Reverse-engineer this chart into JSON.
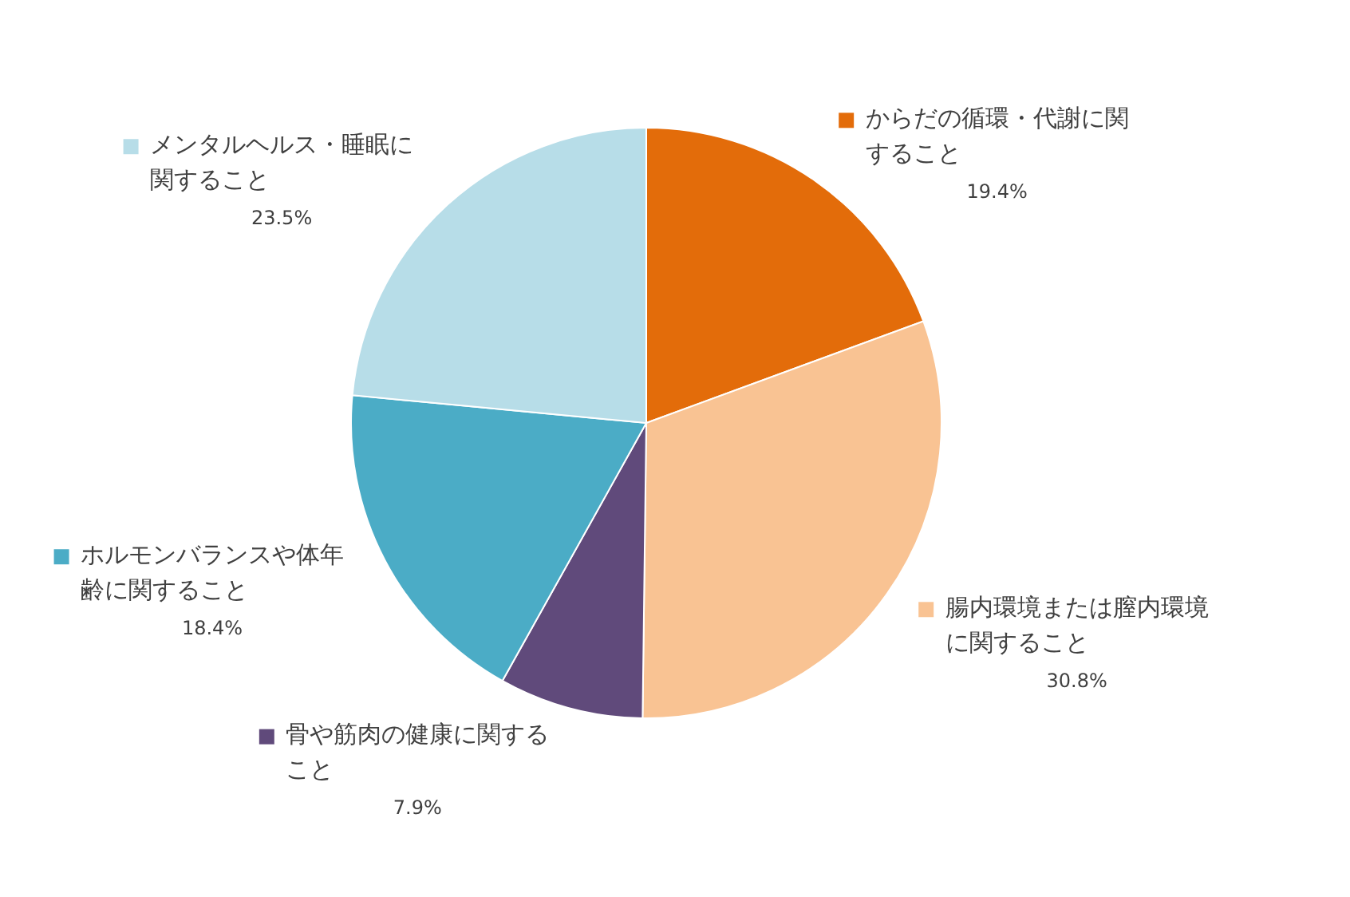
{
  "chart_data": {
    "type": "pie",
    "categories": [
      "からだの循環・代謝に関すること",
      "腸内環境または膣内環境に関すること",
      "骨や筋肉の健康に関すること",
      "ホルモンバランスや体年齢に関すること",
      "メンタルヘルス・睡眠に関すること"
    ],
    "values": [
      19.4,
      30.8,
      7.9,
      18.4,
      23.5
    ],
    "value_labels": [
      "19.4%",
      "30.8%",
      "7.9%",
      "18.4%",
      "23.5%"
    ],
    "colors": [
      "#e36c0a",
      "#f9c393",
      "#604a7b",
      "#4bacc6",
      "#b7dde8"
    ],
    "legend": "bottom left"
  }
}
